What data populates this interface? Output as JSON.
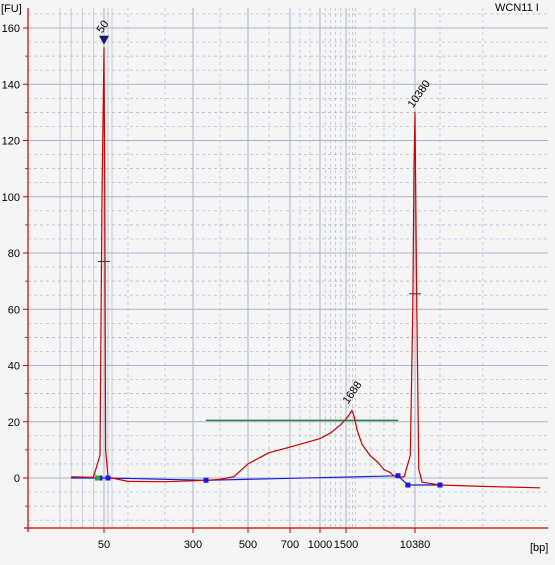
{
  "sample": {
    "name": "WCN11 I"
  },
  "colors": {
    "trace": "#cc0000",
    "baseline": "#1a1adc",
    "region_bar": "#2e7d4f",
    "marker_lower": "#2e8b2e",
    "marker_upper": "#8a2be2",
    "peak_label": "#000000",
    "grid": "#a9b2c8",
    "background": "#f5f5f5"
  },
  "chart_data": {
    "type": "line",
    "title": "",
    "xlabel": "[bp]",
    "ylabel": "[FU]",
    "x_scale": "nonlinear-electropherogram",
    "x_tick_labels": [
      "50",
      "300",
      "500",
      "700",
      "1000",
      "1500",
      "10380"
    ],
    "x_tick_values": [
      50,
      300,
      500,
      700,
      1000,
      1500,
      10380
    ],
    "ylim": [
      -20,
      165
    ],
    "y_ticks": [
      0,
      20,
      40,
      60,
      80,
      100,
      120,
      140,
      160
    ],
    "grid": true,
    "series": [
      {
        "name": "",
        "x": [
          35,
          45,
          48,
          49,
          50,
          51,
          52,
          55,
          60,
          100,
          200,
          300,
          350,
          400,
          450,
          500,
          600,
          700,
          800,
          900,
          1000,
          1100,
          1200,
          1300,
          1400,
          1500,
          1600,
          1688,
          1750,
          1850,
          2000,
          2500,
          3000,
          4000,
          5000,
          6000,
          7000,
          8000,
          9000,
          9500,
          10000,
          10200,
          10300,
          10380,
          10460,
          10550,
          10700,
          11500,
          13000,
          15000
        ],
        "y": [
          0.4,
          0.2,
          8,
          100,
          153,
          100,
          10,
          0.3,
          0,
          -1.2,
          -1.3,
          -1.0,
          -0.8,
          -0.5,
          0.5,
          5.0,
          9.0,
          11.0,
          12.0,
          13.0,
          14.0,
          15.0,
          16.0,
          17.5,
          19.0,
          21.0,
          22.5,
          24.0,
          22.0,
          17.0,
          12.0,
          8.0,
          5.5,
          3.0,
          2.0,
          1.3,
          0.8,
          0.5,
          0.2,
          0.5,
          8.0,
          60.0,
          110.0,
          130.0,
          60.0,
          3.0,
          -1.5,
          -2.5,
          -3.0,
          -3.5
        ]
      }
    ],
    "marker_peaks": [
      {
        "label": "50",
        "x": 50,
        "y": 153
      },
      {
        "label": "10380",
        "x": 10380,
        "y": 130
      }
    ],
    "peak_annotations": [
      {
        "label": "1688",
        "x": 1688,
        "y": 24
      }
    ],
    "region": {
      "x_start": 350,
      "x_end": 9000,
      "y": 20.5
    },
    "baseline": [
      {
        "x": 35,
        "y": 0
      },
      {
        "x": 48,
        "y": 0
      },
      {
        "x": 55,
        "y": 0
      },
      {
        "x": 350,
        "y": -0.8
      },
      {
        "x": 9000,
        "y": 0.8
      },
      {
        "x": 9800,
        "y": -2.5
      },
      {
        "x": 11500,
        "y": -2.5
      }
    ]
  }
}
